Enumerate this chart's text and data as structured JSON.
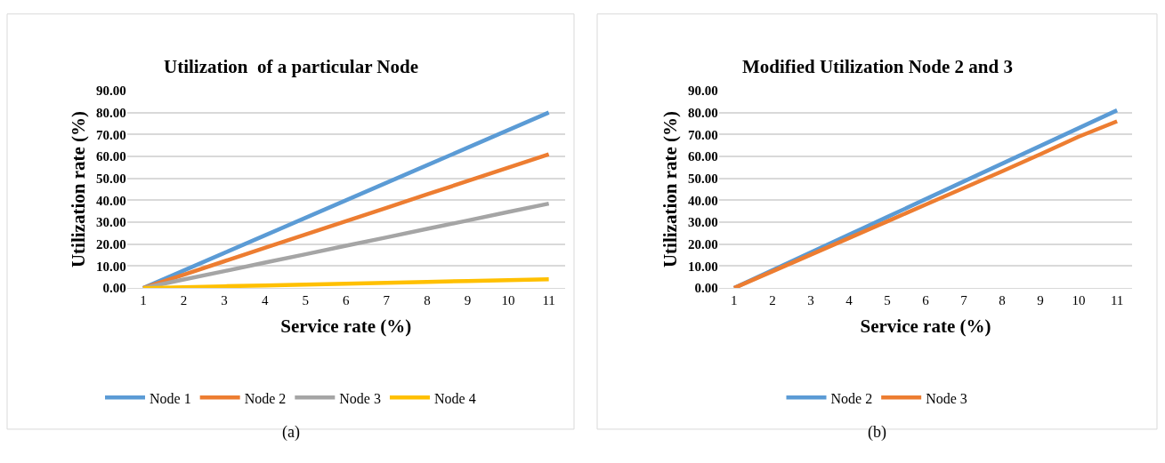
{
  "chart_data": [
    {
      "type": "line",
      "title": "Utilization  of a particular Node",
      "xlabel": "Service rate (%)",
      "ylabel": "Utilization rate (%)",
      "categories": [
        "1",
        "2",
        "3",
        "4",
        "5",
        "6",
        "7",
        "8",
        "9",
        "10",
        "11"
      ],
      "series": [
        {
          "name": "Node 1",
          "color": "#5b9bd5",
          "values": [
            0,
            8,
            16,
            24,
            32,
            40,
            48,
            56,
            64,
            72,
            80
          ]
        },
        {
          "name": "Node 2",
          "color": "#ed7d31",
          "values": [
            0,
            6.1,
            12.2,
            18.3,
            24.4,
            30.5,
            36.6,
            42.7,
            48.8,
            54.9,
            61
          ]
        },
        {
          "name": "Node 3",
          "color": "#a5a5a5",
          "values": [
            0,
            3.9,
            7.7,
            11.6,
            15.4,
            19.3,
            23.1,
            27,
            30.8,
            34.7,
            38.5
          ]
        },
        {
          "name": "Node 4",
          "color": "#ffc000",
          "values": [
            0,
            0.4,
            0.8,
            1.2,
            1.6,
            2,
            2.4,
            2.8,
            3.2,
            3.6,
            4
          ]
        }
      ],
      "ylim": [
        0,
        90
      ],
      "yticks": [
        {
          "value": 0,
          "label": "0.00"
        },
        {
          "value": 10,
          "label": "10.00"
        },
        {
          "value": 20,
          "label": "20.00"
        },
        {
          "value": 30,
          "label": "30.00"
        },
        {
          "value": 40,
          "label": "40.00"
        },
        {
          "value": 50,
          "label": "50.00"
        },
        {
          "value": 60,
          "label": "60.00"
        },
        {
          "value": 70,
          "label": "70.00"
        },
        {
          "value": 80,
          "label": "80.00"
        },
        {
          "value": 90,
          "label": "90.00"
        }
      ],
      "grid": "y",
      "legend": "bottom",
      "annotations": [
        "(a)"
      ]
    },
    {
      "type": "line",
      "title": "Modified Utilization Node 2 and 3",
      "xlabel": "Service rate (%)",
      "ylabel": "Utilization rate (%)",
      "categories": [
        "1",
        "2",
        "3",
        "4",
        "5",
        "6",
        "7",
        "8",
        "9",
        "10",
        "11"
      ],
      "series": [
        {
          "name": "Node 2",
          "color": "#5b9bd5",
          "values": [
            0,
            8.1,
            16.2,
            24.3,
            32.4,
            40.5,
            48.6,
            56.7,
            64.8,
            72.9,
            81
          ]
        },
        {
          "name": "Node 3",
          "color": "#ed7d31",
          "values": [
            0,
            7.6,
            15.2,
            22.8,
            30.4,
            38,
            45.6,
            53.2,
            61,
            69,
            76
          ]
        }
      ],
      "ylim": [
        0,
        90
      ],
      "yticks": [
        {
          "value": 0,
          "label": "0.00"
        },
        {
          "value": 10,
          "label": "10.00"
        },
        {
          "value": 20,
          "label": "20.00"
        },
        {
          "value": 30,
          "label": "30.00"
        },
        {
          "value": 40,
          "label": "40.00"
        },
        {
          "value": 50,
          "label": "50.00"
        },
        {
          "value": 60,
          "label": "60.00"
        },
        {
          "value": 70,
          "label": "70.00"
        },
        {
          "value": 80,
          "label": "80.00"
        },
        {
          "value": 90,
          "label": "90.00"
        }
      ],
      "grid": "y",
      "legend": "bottom",
      "annotations": [
        "(b)"
      ]
    }
  ]
}
